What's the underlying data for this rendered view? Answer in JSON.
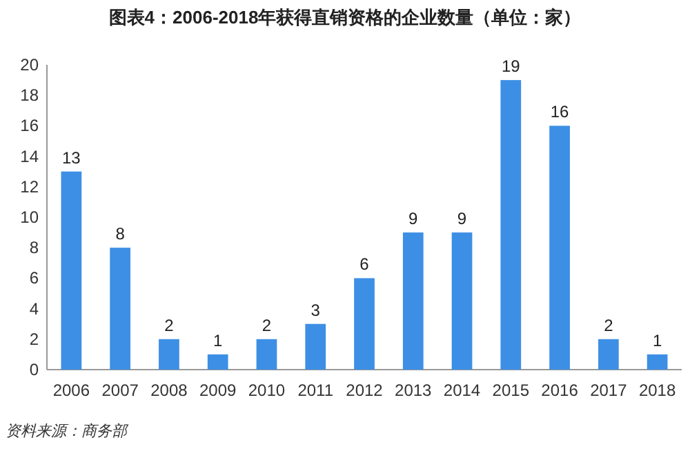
{
  "chart_data": {
    "type": "bar",
    "title": "图表4：2006-2018年获得直销资格的企业数量（单位：家）",
    "categories": [
      "2006",
      "2007",
      "2008",
      "2009",
      "2010",
      "2011",
      "2012",
      "2013",
      "2014",
      "2015",
      "2016",
      "2017",
      "2018"
    ],
    "values": [
      13,
      8,
      2,
      1,
      2,
      3,
      6,
      9,
      9,
      19,
      16,
      2,
      1
    ],
    "color": "#3d8fe5",
    "ylim": [
      0,
      20
    ],
    "yticks": [
      0,
      2,
      4,
      6,
      8,
      10,
      12,
      14,
      16,
      18,
      20
    ],
    "grid": false,
    "data_labels": true,
    "annotations": [
      "资料来源：商务部"
    ]
  }
}
